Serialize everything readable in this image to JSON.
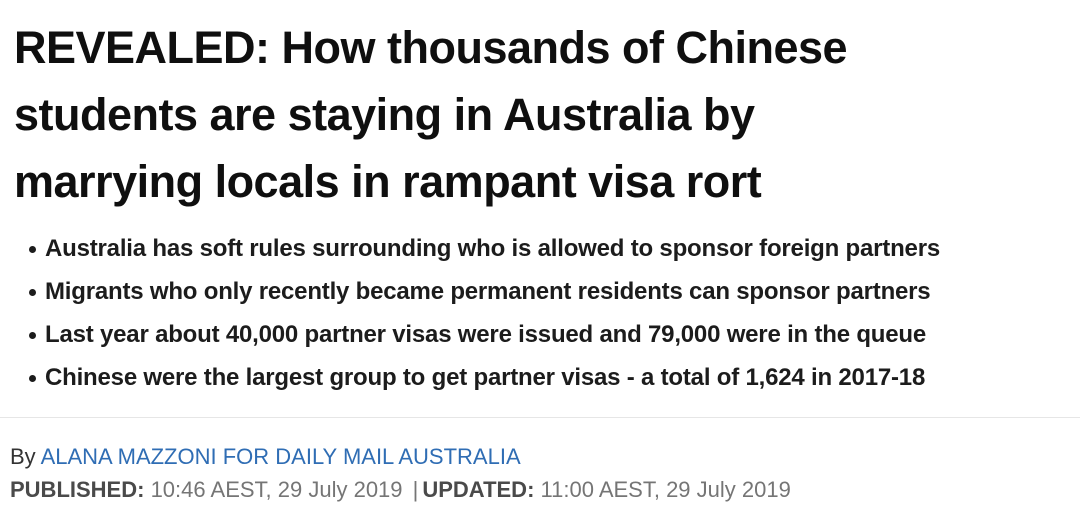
{
  "article": {
    "headline": "REVEALED: How thousands of Chinese students are staying in Australia by marrying locals in rampant visa rort",
    "headline_lines": [
      "REVEALED: How thousands of Chinese",
      "students are staying in Australia by",
      "marrying locals in rampant visa rort"
    ],
    "bullets": [
      "Australia has soft rules surrounding who is allowed to sponsor foreign partners",
      "Migrants who only recently became permanent residents can sponsor partners",
      "Last year about 40,000 partner visas were issued and 79,000 were in the queue",
      "Chinese were the largest group to get partner visas - a total of 1,624 in 2017-18"
    ],
    "byline": {
      "prefix": "By ",
      "author_link": "ALANA MAZZONI FOR DAILY MAIL AUSTRALIA"
    },
    "dates": {
      "published_label": "PUBLISHED:",
      "published_value": " 10:46 AEST, 29 July 2019 ",
      "separator": "|",
      "updated_label": "UPDATED:",
      "updated_value": " 11:00 AEST, 29 July 2019"
    }
  },
  "colors": {
    "headline_text": "#0f0f0f",
    "bullet_text": "#1c1c1c",
    "link_blue": "#2f6db4",
    "label_gray": "#4a4a4a",
    "date_gray": "#757575",
    "divider_gray": "#e6e6e6",
    "background": "#ffffff"
  }
}
